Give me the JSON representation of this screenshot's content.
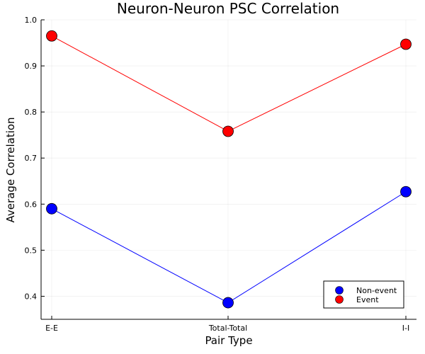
{
  "chart_data": {
    "type": "line",
    "title": "Neuron-Neuron PSC Correlation",
    "xlabel": "Pair Type",
    "ylabel": "Average Correlation",
    "categories": [
      "E-E",
      "Total-Total",
      "I-I"
    ],
    "series": [
      {
        "name": "Non-event",
        "color": "#0000ff",
        "values": [
          0.59,
          0.386,
          0.627
        ]
      },
      {
        "name": "Event",
        "color": "#ff0000",
        "values": [
          0.965,
          0.758,
          0.947
        ]
      }
    ],
    "ylim": [
      0.35,
      1.0
    ],
    "yticks": [
      "0.4",
      "0.5",
      "0.6",
      "0.7",
      "0.8",
      "0.9",
      "1.0"
    ],
    "grid": true,
    "legend_position": "bottom-right"
  }
}
